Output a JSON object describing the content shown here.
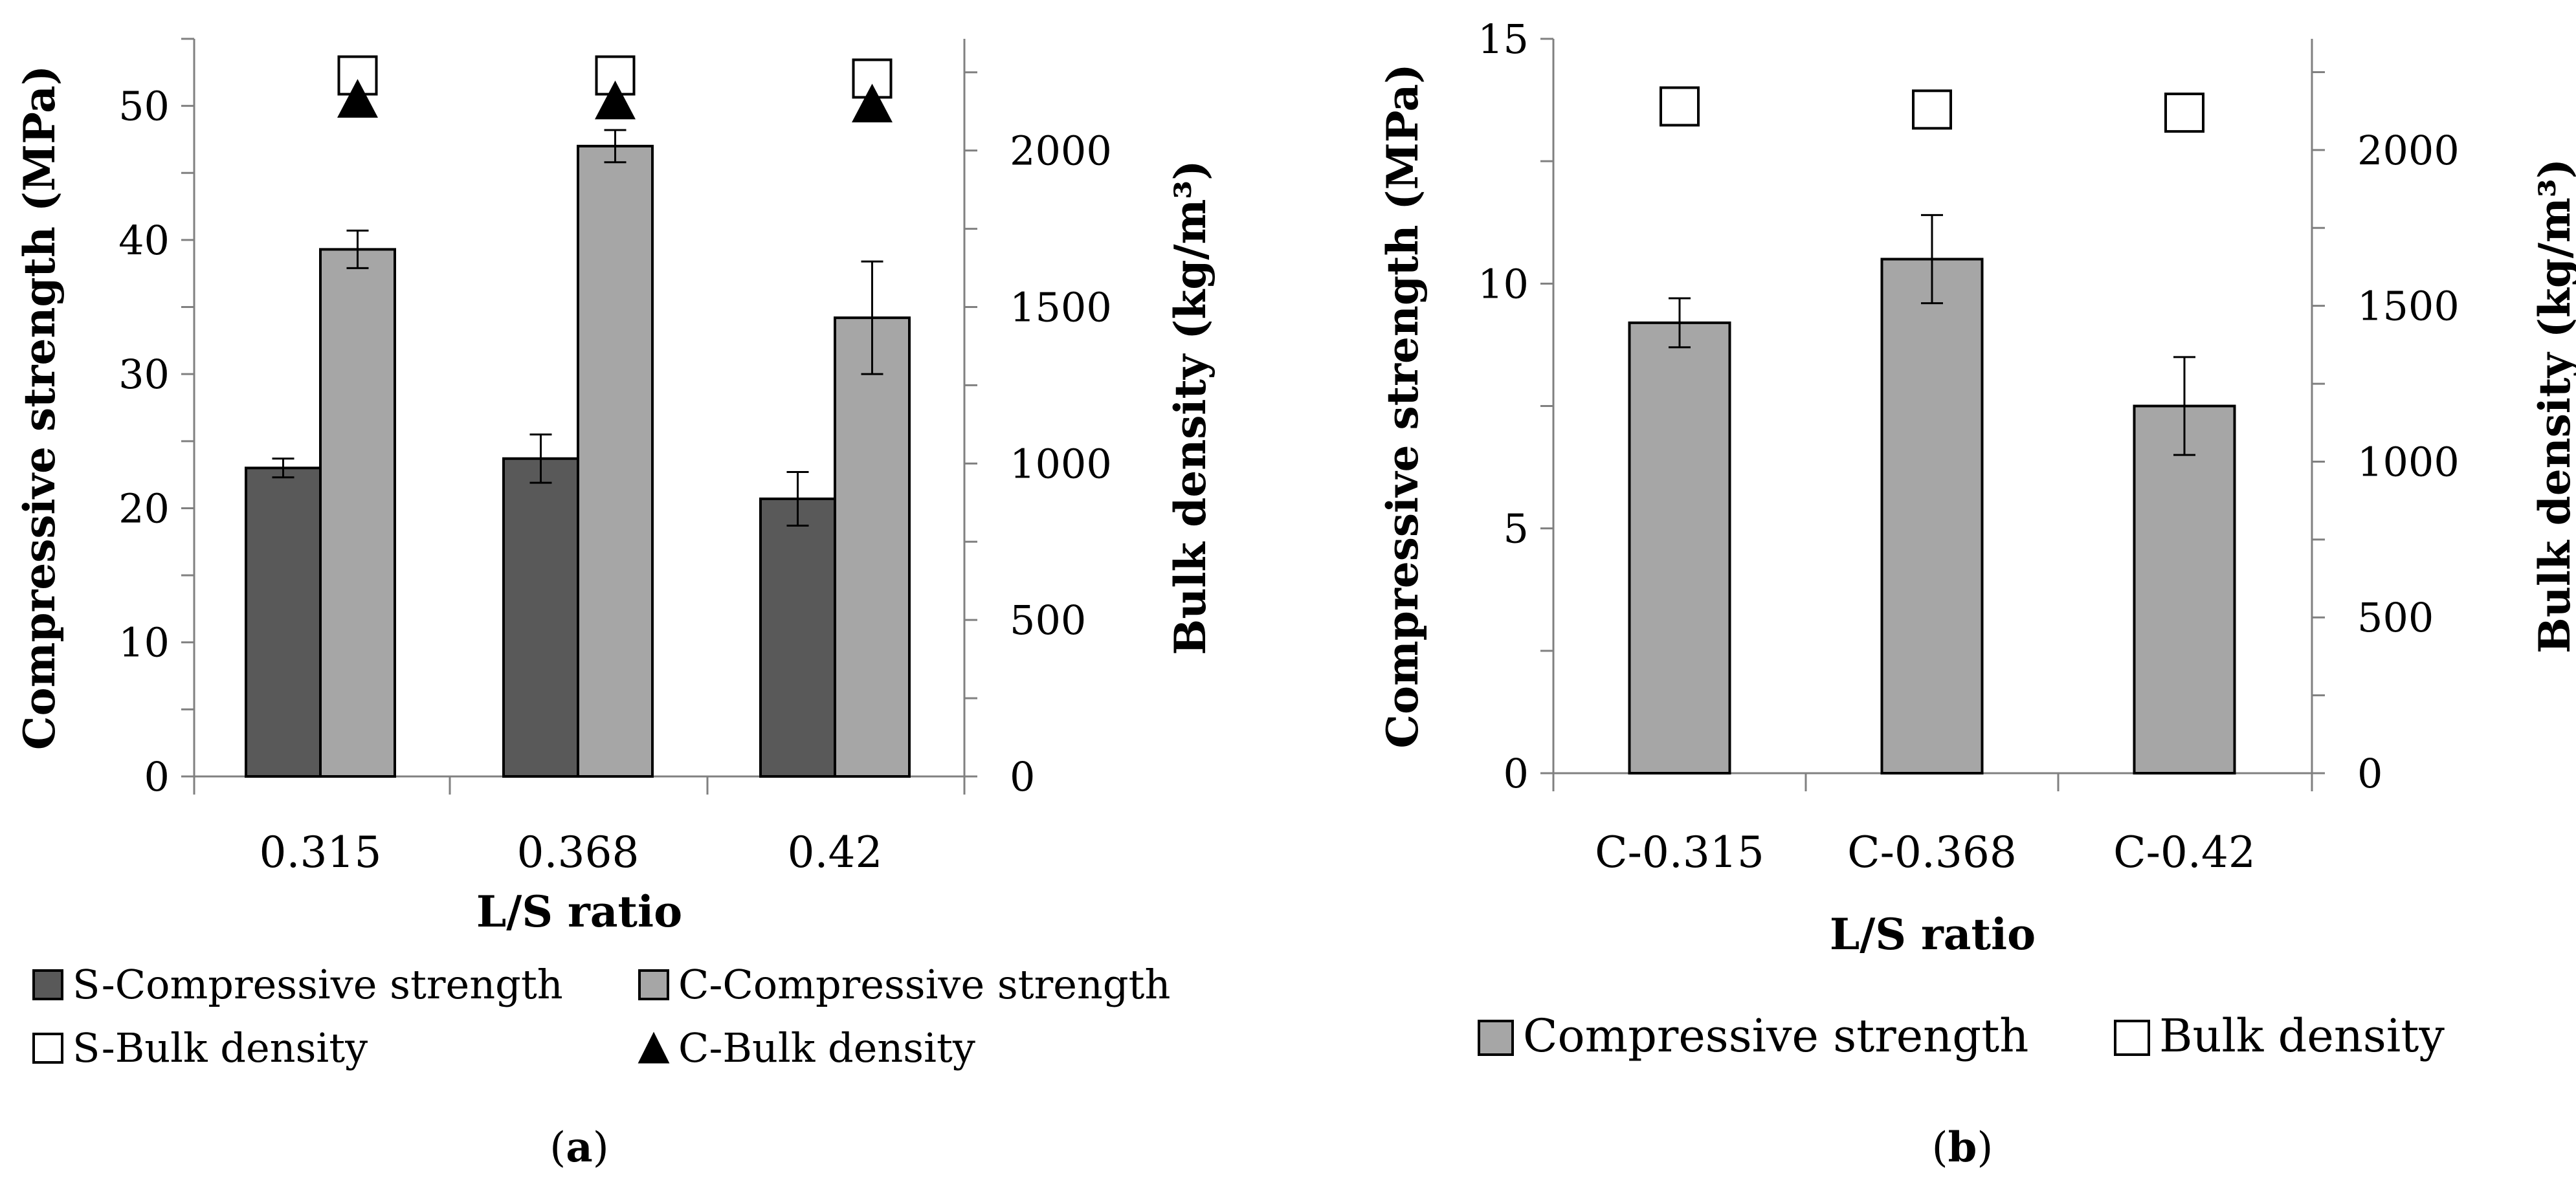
{
  "chart_data": [
    {
      "type": "bar",
      "panel": "a",
      "panel_label": "a",
      "categories": [
        "0.315",
        "0.368",
        "0.42"
      ],
      "xlabel": "L/S ratio",
      "ylabel": "Compressive strength (MPa)",
      "y2label": "Bulk density (kg/m³)",
      "ylim": [
        0,
        55
      ],
      "yticks": [
        0,
        10,
        20,
        30,
        40,
        50
      ],
      "y2lim": [
        0,
        2357
      ],
      "y2ticks": [
        0,
        500,
        1000,
        1500,
        2000
      ],
      "series": [
        {
          "name": "S-Compressive strength",
          "kind": "bar",
          "axis": "left",
          "color": "#595959",
          "values": [
            23.0,
            23.7,
            20.7
          ],
          "errors": [
            0.7,
            1.8,
            2.0
          ]
        },
        {
          "name": "C-Compressive strength",
          "kind": "bar",
          "axis": "left",
          "color": "#a6a6a6",
          "values": [
            39.3,
            47.0,
            34.2
          ],
          "errors": [
            1.4,
            1.2,
            4.2
          ]
        },
        {
          "name": "S-Bulk density",
          "kind": "marker",
          "marker": "square",
          "axis": "right",
          "values": [
            2240,
            2240,
            2230
          ]
        },
        {
          "name": "C-Bulk density",
          "kind": "marker",
          "marker": "triangle",
          "axis": "right",
          "values": [
            2165,
            2160,
            2150
          ]
        }
      ]
    },
    {
      "type": "bar",
      "panel": "b",
      "panel_label": "b",
      "categories": [
        "C-0.315",
        "C-0.368",
        "C-0.42"
      ],
      "xlabel": "L/S ratio",
      "ylabel": "Compressive strength (MPa)",
      "y2label": "Bulk density (kg/m³)",
      "ylim": [
        0,
        15
      ],
      "yticks": [
        0,
        5,
        10,
        15
      ],
      "y2lim": [
        0,
        2357
      ],
      "y2ticks": [
        0,
        500,
        1000,
        1500,
        2000
      ],
      "series": [
        {
          "name": "Compressive strength",
          "kind": "bar",
          "axis": "left",
          "color": "#a6a6a6",
          "values": [
            9.2,
            10.5,
            7.5
          ],
          "errors": [
            0.5,
            0.9,
            1.0
          ]
        },
        {
          "name": "Bulk density",
          "kind": "marker",
          "marker": "square",
          "axis": "right",
          "values": [
            2140,
            2130,
            2120
          ]
        }
      ]
    }
  ]
}
